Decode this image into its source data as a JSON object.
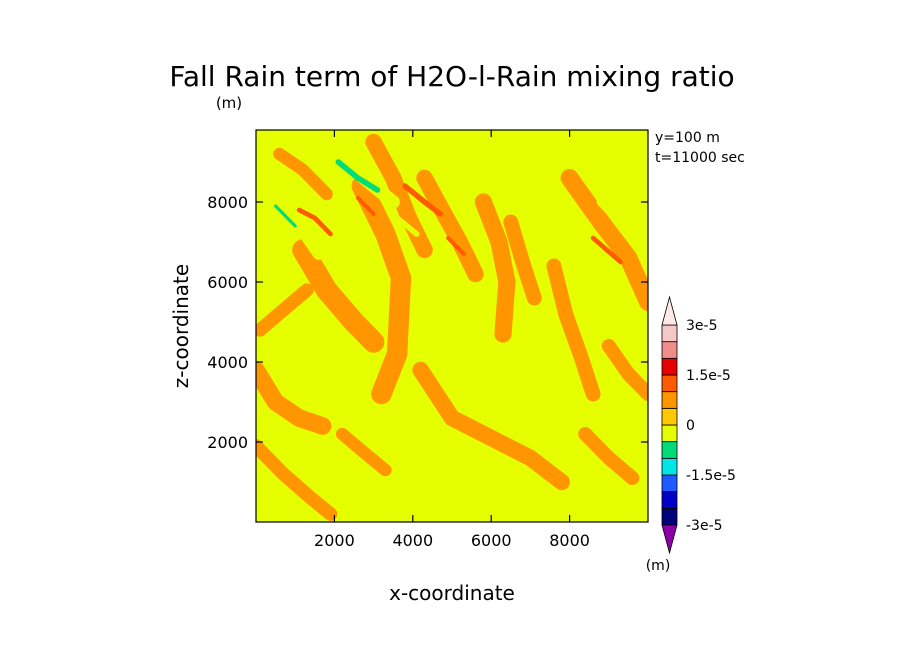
{
  "chart_data": {
    "type": "heatmap",
    "title": "Fall Rain term of H2O-l-Rain mixing ratio",
    "title_unit": "(m)",
    "annotation": [
      "y=100 m",
      "t=11000 sec"
    ],
    "xlabel": "x-coordinate",
    "ylabel": "z-coordinate",
    "xlim": [
      0,
      10000
    ],
    "ylim": [
      0,
      9800
    ],
    "xticks": [
      "2000",
      "4000",
      "6000",
      "8000"
    ],
    "yticks": [
      "2000",
      "4000",
      "6000",
      "8000"
    ],
    "x_tick_values": [
      2000,
      4000,
      6000,
      8000
    ],
    "y_tick_values": [
      2000,
      4000,
      6000,
      8000
    ],
    "colorbar": {
      "unit": "(m)",
      "levels": [
        -3e-05,
        -2.5e-05,
        -2e-05,
        -1.5e-05,
        -1e-05,
        -5e-06,
        0,
        5e-06,
        1e-05,
        1.5e-05,
        2e-05,
        2.5e-05,
        3e-05
      ],
      "colors": [
        "#8c00a8",
        "#00007a",
        "#0000c8",
        "#1e5aff",
        "#00e6e6",
        "#00dc78",
        "#e6ff00",
        "#ffc800",
        "#ff9600",
        "#ff5a00",
        "#e60000",
        "#f08c8c",
        "#f5c8c8",
        "#ffe8e8"
      ],
      "labels": [
        {
          "text": "3e-5",
          "value": 3e-05
        },
        {
          "text": "1.5e-5",
          "value": 1.5e-05
        },
        {
          "text": "0",
          "value": 0
        },
        {
          "text": "-1.5e-5",
          "value": -1.5e-05
        },
        {
          "text": "-3e-5",
          "value": -3e-05
        }
      ]
    },
    "background_value": 0,
    "features": [
      {
        "kind": "band",
        "level": 5e-06,
        "pts": [
          [
            0,
            3800
          ],
          [
            500,
            3000
          ],
          [
            1100,
            2600
          ],
          [
            1700,
            2400
          ]
        ],
        "w": 450
      },
      {
        "kind": "band",
        "level": 5e-06,
        "pts": [
          [
            0,
            1900
          ],
          [
            700,
            1200
          ],
          [
            1400,
            600
          ],
          [
            1900,
            200
          ]
        ],
        "w": 350
      },
      {
        "kind": "band",
        "level": 5e-06,
        "pts": [
          [
            1200,
            6800
          ],
          [
            1800,
            5800
          ],
          [
            2500,
            5000
          ],
          [
            3000,
            4500
          ]
        ],
        "w": 550
      },
      {
        "kind": "band",
        "level": 5e-06,
        "pts": [
          [
            2700,
            8400
          ],
          [
            3300,
            7200
          ],
          [
            3700,
            6100
          ],
          [
            3600,
            4200
          ],
          [
            3200,
            3200
          ]
        ],
        "w": 520
      },
      {
        "kind": "band",
        "level": 5e-06,
        "pts": [
          [
            3000,
            9500
          ],
          [
            3500,
            8600
          ],
          [
            3900,
            7600
          ],
          [
            4300,
            6800
          ]
        ],
        "w": 420
      },
      {
        "kind": "band",
        "level": 5e-06,
        "pts": [
          [
            4300,
            8600
          ],
          [
            4800,
            7700
          ],
          [
            5200,
            7000
          ],
          [
            5600,
            6200
          ]
        ],
        "w": 420
      },
      {
        "kind": "band",
        "level": 5e-06,
        "pts": [
          [
            5800,
            8000
          ],
          [
            6200,
            7000
          ],
          [
            6400,
            6000
          ],
          [
            6300,
            4700
          ]
        ],
        "w": 440
      },
      {
        "kind": "band",
        "level": 5e-06,
        "pts": [
          [
            6500,
            7500
          ],
          [
            6800,
            6500
          ],
          [
            7100,
            5600
          ]
        ],
        "w": 380
      },
      {
        "kind": "band",
        "level": 5e-06,
        "pts": [
          [
            7600,
            6400
          ],
          [
            7900,
            5200
          ],
          [
            8300,
            4100
          ],
          [
            8600,
            3200
          ]
        ],
        "w": 380
      },
      {
        "kind": "band",
        "level": 5e-06,
        "pts": [
          [
            8000,
            8600
          ],
          [
            8800,
            7500
          ],
          [
            9500,
            6600
          ],
          [
            10000,
            5500
          ]
        ],
        "w": 460
      },
      {
        "kind": "band",
        "level": 5e-06,
        "pts": [
          [
            4200,
            3800
          ],
          [
            5000,
            2600
          ],
          [
            6000,
            2100
          ],
          [
            7000,
            1600
          ],
          [
            7800,
            1000
          ]
        ],
        "w": 420
      },
      {
        "kind": "band",
        "level": 5e-06,
        "pts": [
          [
            8400,
            2200
          ],
          [
            9000,
            1600
          ],
          [
            9600,
            1100
          ]
        ],
        "w": 360
      },
      {
        "kind": "band",
        "level": 5e-06,
        "pts": [
          [
            100,
            4800
          ],
          [
            700,
            5300
          ],
          [
            1300,
            5800
          ]
        ],
        "w": 340
      },
      {
        "kind": "band",
        "level": 5e-06,
        "pts": [
          [
            9000,
            4400
          ],
          [
            9500,
            3700
          ],
          [
            10000,
            3200
          ]
        ],
        "w": 360
      },
      {
        "kind": "band",
        "level": 5e-06,
        "pts": [
          [
            600,
            9200
          ],
          [
            1200,
            8800
          ],
          [
            1800,
            8200
          ]
        ],
        "w": 320
      },
      {
        "kind": "band",
        "level": 5e-06,
        "pts": [
          [
            2200,
            2200
          ],
          [
            2800,
            1700
          ],
          [
            3300,
            1300
          ]
        ],
        "w": 320
      },
      {
        "kind": "band",
        "level": 1e-05,
        "pts": [
          [
            3800,
            8400
          ],
          [
            4300,
            8000
          ],
          [
            4700,
            7700
          ]
        ],
        "w": 140
      },
      {
        "kind": "band",
        "level": 1e-05,
        "pts": [
          [
            1100,
            7800
          ],
          [
            1500,
            7600
          ],
          [
            1900,
            7200
          ]
        ],
        "w": 120
      },
      {
        "kind": "band",
        "level": 1e-05,
        "pts": [
          [
            8600,
            7100
          ],
          [
            9300,
            6500
          ]
        ],
        "w": 120
      },
      {
        "kind": "band",
        "level": 1e-05,
        "pts": [
          [
            4900,
            7100
          ],
          [
            5300,
            6700
          ]
        ],
        "w": 100
      },
      {
        "kind": "band",
        "level": 1e-05,
        "pts": [
          [
            2600,
            8100
          ],
          [
            3000,
            7700
          ]
        ],
        "w": 100
      },
      {
        "kind": "band",
        "level": -5e-06,
        "pts": [
          [
            1900,
            9200
          ],
          [
            2500,
            8800
          ],
          [
            3000,
            8400
          ],
          [
            3500,
            8000
          ]
        ],
        "w": 340
      },
      {
        "kind": "band",
        "level": -5e-06,
        "pts": [
          [
            50,
            8300
          ],
          [
            600,
            7800
          ],
          [
            1100,
            7400
          ],
          [
            1600,
            6700
          ]
        ],
        "w": 300
      },
      {
        "kind": "band",
        "level": -5e-06,
        "pts": [
          [
            7300,
            7600
          ],
          [
            7900,
            7300
          ],
          [
            8500,
            6900
          ]
        ],
        "w": 200
      },
      {
        "kind": "band",
        "level": -5e-06,
        "pts": [
          [
            8800,
            8000
          ],
          [
            9400,
            7400
          ],
          [
            10000,
            6900
          ]
        ],
        "w": 220
      },
      {
        "kind": "band",
        "level": -5e-06,
        "pts": [
          [
            3600,
            7600
          ],
          [
            4100,
            7200
          ]
        ],
        "w": 140
      },
      {
        "kind": "band",
        "level": -5e-06,
        "pts": [
          [
            2300,
            7500
          ],
          [
            2700,
            7200
          ]
        ],
        "w": 100
      },
      {
        "kind": "band",
        "level": -5e-06,
        "pts": [
          [
            6200,
            8600
          ],
          [
            6700,
            8300
          ]
        ],
        "w": 90
      },
      {
        "kind": "band",
        "level": -5e-06,
        "pts": [
          [
            9700,
            9600
          ],
          [
            10000,
            9400
          ]
        ],
        "w": 80
      },
      {
        "kind": "band",
        "level": -1e-05,
        "pts": [
          [
            2100,
            9000
          ],
          [
            2600,
            8600
          ],
          [
            3100,
            8300
          ]
        ],
        "w": 140
      },
      {
        "kind": "band",
        "level": -1e-05,
        "pts": [
          [
            500,
            7900
          ],
          [
            1000,
            7400
          ]
        ],
        "w": 80
      }
    ]
  }
}
